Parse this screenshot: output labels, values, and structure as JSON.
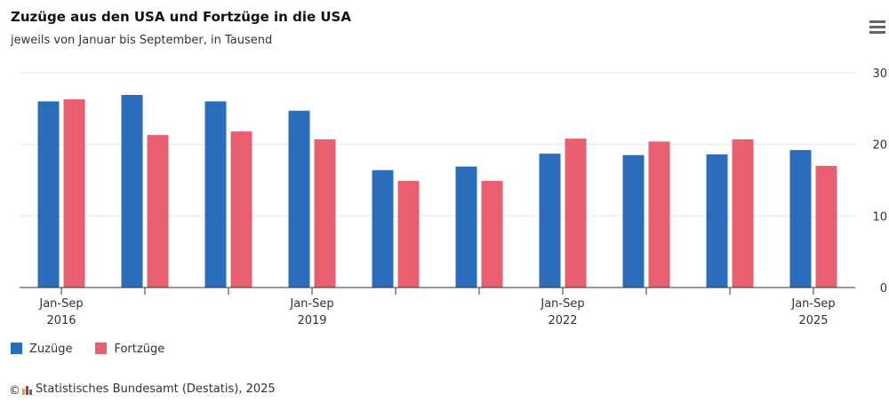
{
  "chart_data": {
    "type": "bar",
    "title": "Zuzüge aus den USA und Fortzüge in die USA",
    "subtitle": "jeweils von Januar bis September, in Tausend",
    "categories": [
      "Jan-Sep 2016",
      null,
      null,
      "Jan-Sep 2019",
      null,
      null,
      "Jan-Sep 2022",
      null,
      null,
      "Jan-Sep 2025"
    ],
    "series": [
      {
        "name": "Zuzüge",
        "color": "#2a6ebb",
        "values": [
          26.0,
          26.9,
          26.0,
          24.7,
          16.4,
          16.9,
          18.7,
          18.5,
          18.6,
          19.2
        ]
      },
      {
        "name": "Fortzüge",
        "color": "#e8606f",
        "values": [
          26.3,
          21.3,
          21.8,
          20.7,
          14.9,
          14.9,
          20.8,
          20.4,
          20.7,
          17.0
        ]
      }
    ],
    "ylim": [
      0,
      30
    ],
    "yticks": [
      0,
      10,
      20,
      30
    ],
    "grid": true,
    "source": "Statistisches Bundesamt (Destatis), 2025"
  }
}
